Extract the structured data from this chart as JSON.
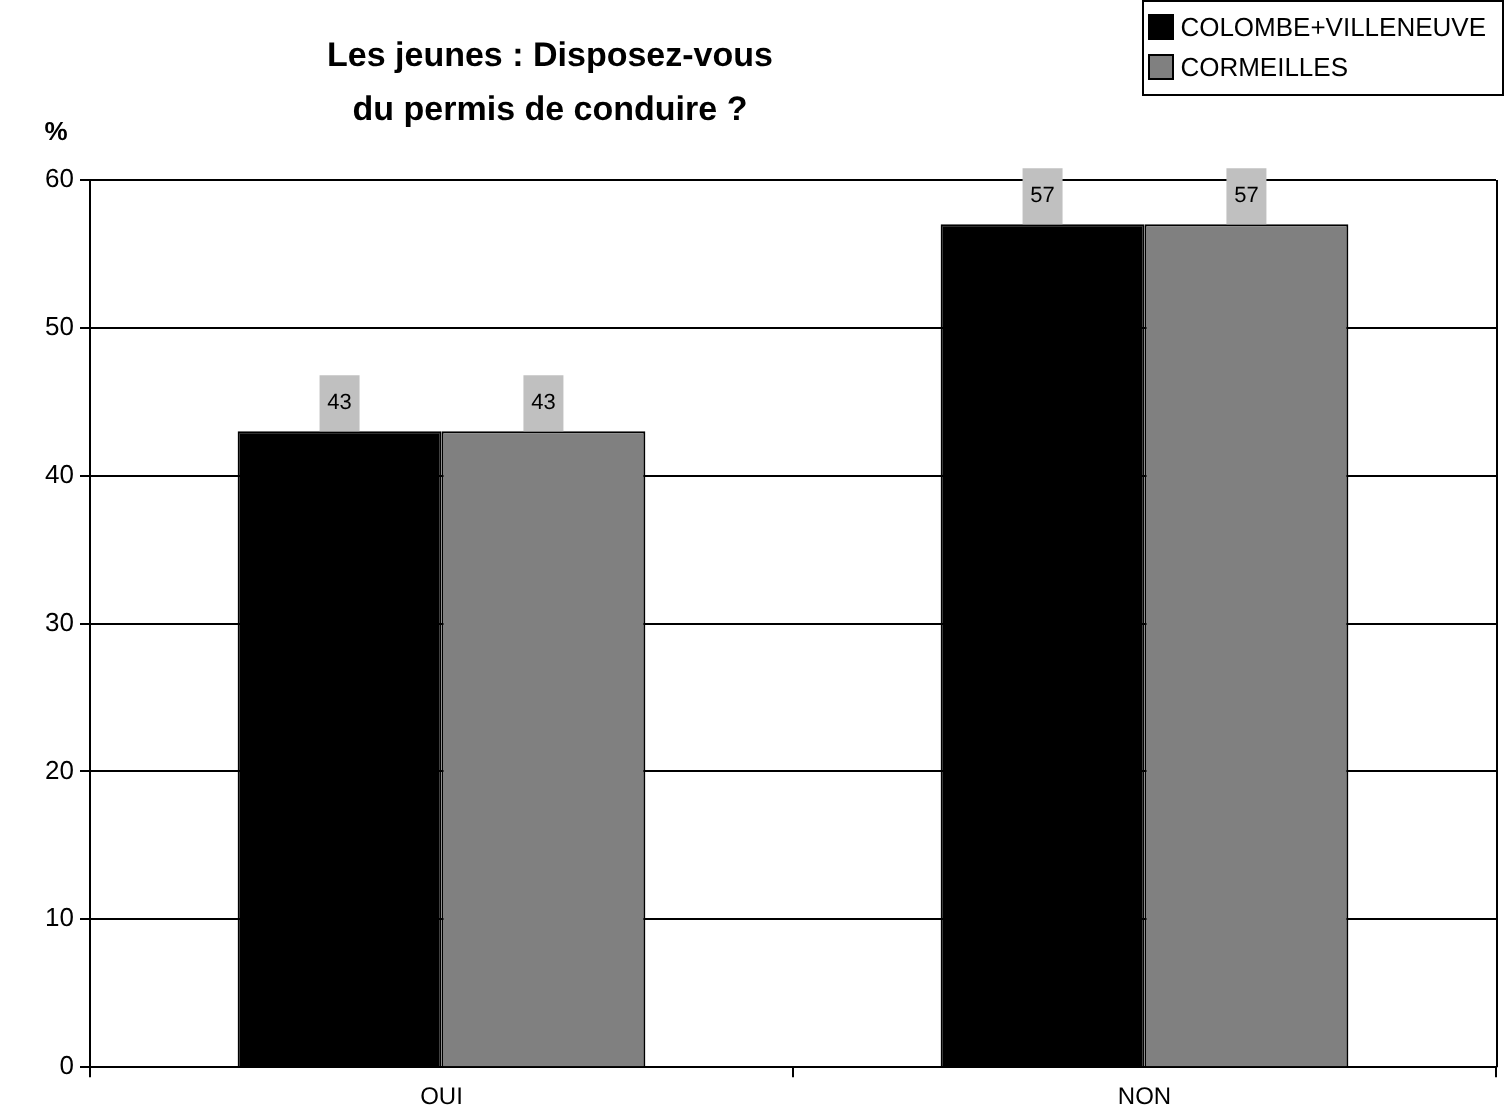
{
  "chart_data": {
    "type": "bar",
    "title": "Les jeunes : Disposez-vous\ndu permis de conduire ?",
    "ylabel": "%",
    "categories": [
      "OUI",
      "NON"
    ],
    "series": [
      {
        "name": "COLOMBE+VILLENEUVE",
        "color": "#000000",
        "values": [
          43,
          57
        ]
      },
      {
        "name": "CORMEILLES",
        "color": "#808080",
        "values": [
          43,
          57
        ]
      }
    ],
    "ylim": [
      0,
      60
    ],
    "yticks": [
      0,
      10,
      20,
      30,
      40,
      50,
      60
    ],
    "grid": "y",
    "legend": "top right",
    "data_labels": true
  }
}
